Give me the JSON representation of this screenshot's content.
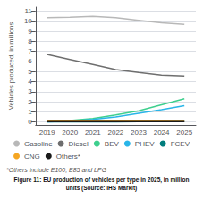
{
  "chart_data": {
    "type": "line",
    "y_label": "Vehicles produced, in millions",
    "categories": [
      "2019",
      "2020",
      "2021",
      "2022",
      "2023",
      "2024",
      "2025"
    ],
    "series": [
      {
        "name": "Gasoline",
        "color": "#b8b8b8",
        "values": [
          10.35,
          10.4,
          10.5,
          10.35,
          10.1,
          9.85,
          9.7
        ]
      },
      {
        "name": "Diesel",
        "color": "#6e6e6e",
        "values": [
          6.7,
          6.2,
          5.7,
          5.2,
          4.9,
          4.65,
          4.55
        ]
      },
      {
        "name": "BEV",
        "color": "#3ecf8e",
        "values": [
          0.05,
          0.15,
          0.35,
          0.7,
          1.1,
          1.7,
          2.3
        ]
      },
      {
        "name": "PHEV",
        "color": "#29b5e8",
        "values": [
          0.02,
          0.08,
          0.25,
          0.5,
          0.85,
          1.2,
          1.6
        ]
      },
      {
        "name": "FCEV",
        "color": "#007d7d",
        "values": [
          0.01,
          0.01,
          0.015,
          0.02,
          0.025,
          0.03,
          0.035
        ]
      },
      {
        "name": "CNG",
        "color": "#f5a623",
        "values": [
          0.12,
          0.11,
          0.1,
          0.09,
          0.08,
          0.07,
          0.06
        ]
      },
      {
        "name": "Others*",
        "color": "#1a1a1a",
        "values": [
          0.03,
          0.03,
          0.03,
          0.03,
          0.03,
          0.03,
          0.03
        ]
      }
    ],
    "ylim": [
      -0.3,
      11.4
    ],
    "yticks": [
      0,
      1,
      2,
      3,
      4,
      5,
      6,
      7,
      8,
      9,
      10,
      11
    ],
    "grid": true,
    "legend": "bottom",
    "annotations": [
      "*Others include E100, E85 and LPG",
      "Figure 11: EU production of vehicles per type in 2025, in million",
      "units (Source: IHS Markit)"
    ]
  }
}
